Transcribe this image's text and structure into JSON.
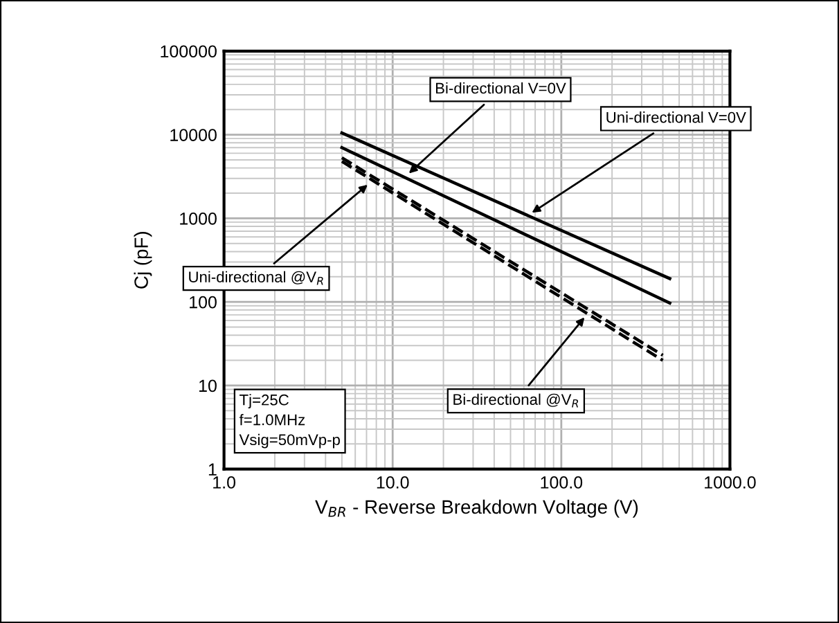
{
  "chart_data": {
    "type": "line",
    "xlabel": "V$_{BR}$ - Reverse Breakdown Voltage (V)",
    "ylabel": "Cj (pF)",
    "log": "xy",
    "xlim": [
      1,
      1000
    ],
    "ylim": [
      1,
      100000
    ],
    "xticks": [
      {
        "value": 1,
        "label": "1.0"
      },
      {
        "value": 10,
        "label": "10.0"
      },
      {
        "value": 100,
        "label": "100.0"
      },
      {
        "value": 1000,
        "label": "1000.0"
      }
    ],
    "yticks": [
      1,
      10,
      100,
      1000,
      10000,
      100000
    ],
    "grid": true,
    "marker": "none",
    "series": [
      {
        "color": "#000000",
        "line_style": "solid",
        "x": [
          5,
          440
        ],
        "values": [
          10500,
          190
        ]
      },
      {
        "color": "#000000",
        "line_style": "solid",
        "x": [
          5,
          440
        ],
        "values": [
          7000,
          97
        ]
      },
      {
        "color": "#000000",
        "line_style": "dashed",
        "x": [
          5,
          400
        ],
        "values": [
          5300,
          23
        ]
      },
      {
        "color": "#000000",
        "line_style": "dashed",
        "x": [
          5,
          400
        ],
        "values": [
          4800,
          20
        ]
      }
    ],
    "annotations": [
      {
        "text": "Bi-directional V=0V",
        "x": 12,
        "y": 3200
      },
      {
        "text": "Uni-directional V=0V",
        "x": 64,
        "y": 1100
      },
      {
        "text": "Uni-directional @V$_{R}$",
        "x": 7.4,
        "y": 2700
      },
      {
        "text": "Bi-directional @V$_{R}$",
        "x": 142,
        "y": 71
      },
      "Tj=25C\nf=1.0MHz\nVsig=50mVp-p"
    ]
  }
}
